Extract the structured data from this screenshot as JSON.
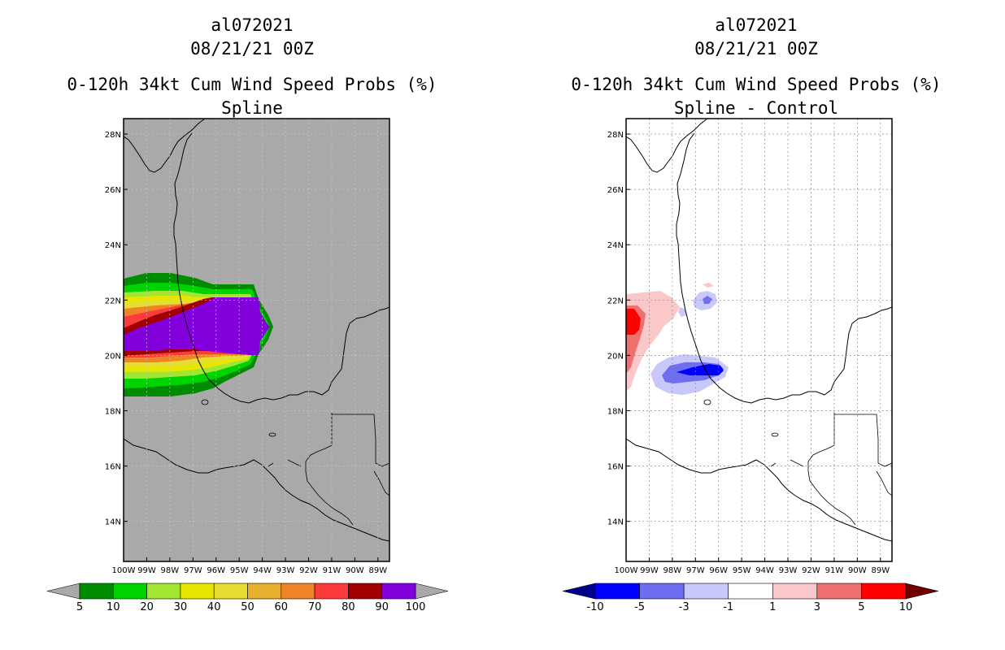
{
  "panels": [
    {
      "id": "left",
      "storm": "al072021",
      "datetime": "08/21/21 00Z",
      "title": "0-120h 34kt Cum Wind Speed Probs (%)",
      "subtitle": "Spline",
      "background": "#a9a9a9"
    },
    {
      "id": "right",
      "storm": "al072021",
      "datetime": "08/21/21 00Z",
      "title": "0-120h 34kt Cum Wind Speed Probs (%)",
      "subtitle": "Spline - Control",
      "background": "#ffffff"
    }
  ],
  "map": {
    "lon_labels": [
      "100W",
      "99W",
      "98W",
      "97W",
      "96W",
      "95W",
      "94W",
      "93W",
      "92W",
      "91W",
      "90W",
      "89W"
    ],
    "lat_labels": [
      "28N",
      "26N",
      "24N",
      "22N",
      "20N",
      "18N",
      "16N",
      "14N"
    ]
  },
  "colorbars": {
    "left": {
      "labels": [
        "5",
        "10",
        "20",
        "30",
        "40",
        "50",
        "60",
        "70",
        "80",
        "90",
        "100"
      ],
      "colors": [
        "#008c00",
        "#00d400",
        "#a0e632",
        "#e6e600",
        "#e6dc32",
        "#e6af2d",
        "#f08228",
        "#fa3c3c",
        "#a00000",
        "#8200dc"
      ],
      "end_color": "#a9a9a9"
    },
    "right": {
      "labels": [
        "-10",
        "-5",
        "-3",
        "-1",
        "1",
        "3",
        "5",
        "10"
      ],
      "colors": [
        "#0000ff",
        "#6e6ef0",
        "#c8c8fa",
        "#ffffff",
        "#fac8c8",
        "#f07070",
        "#ff0000"
      ],
      "low_color": "#00008c",
      "high_color": "#6e0000"
    }
  }
}
